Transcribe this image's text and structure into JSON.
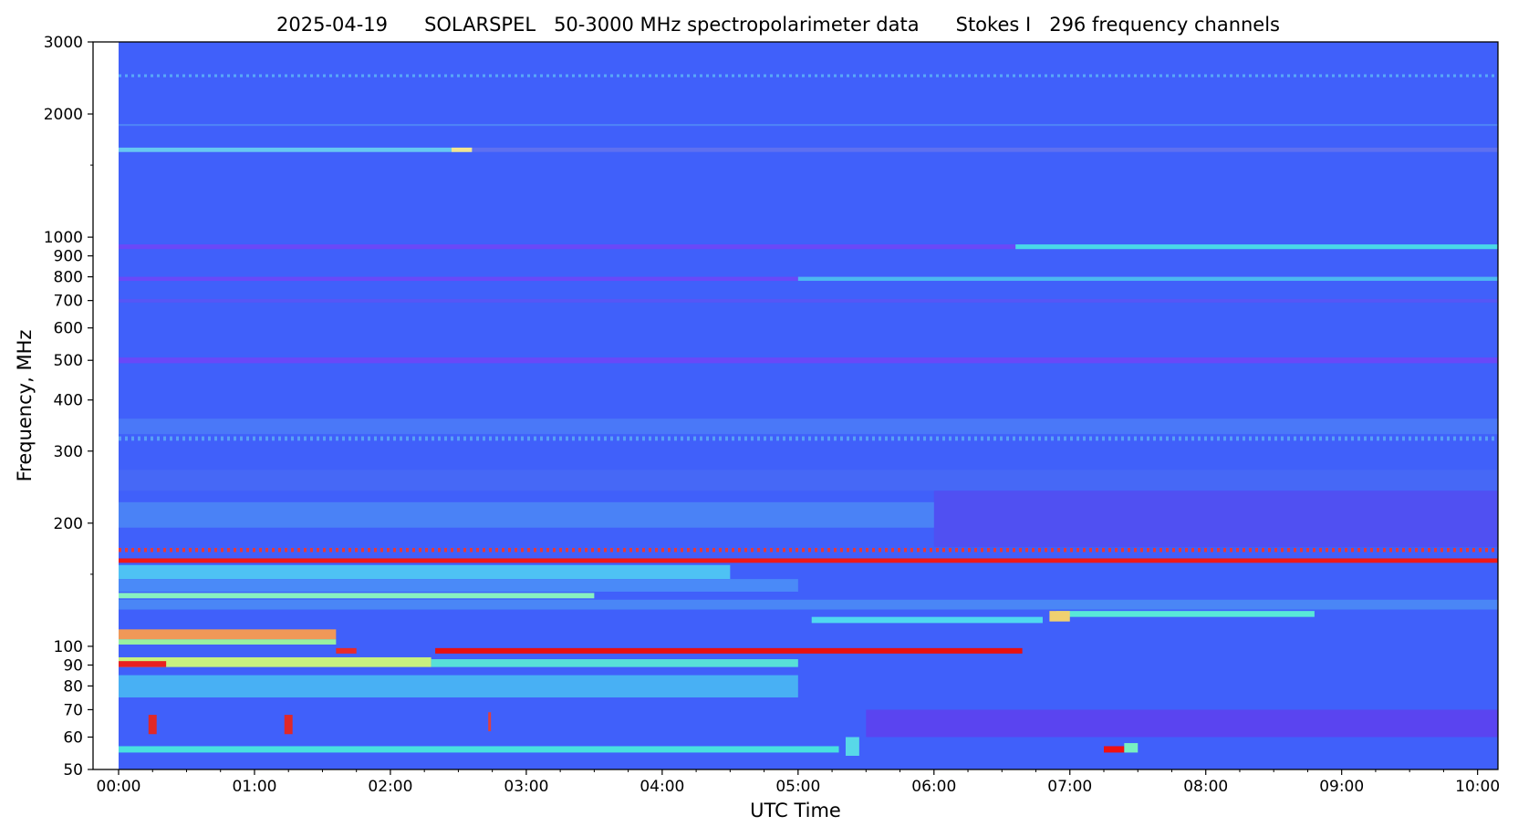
{
  "chart_data": {
    "type": "heatmap",
    "title": "2025-04-19      SOLARSPEL   50-3000 MHz spectropolarimeter data      Stokes I   296 frequency channels",
    "xlabel": "UTC Time",
    "ylabel": "Frequency, MHz",
    "x_unit": "UTC hours",
    "xlim": [
      0.0,
      10.15
    ],
    "ylim": [
      50,
      3000
    ],
    "y_scale": "log",
    "colormap": "rainbow",
    "background_color": "#4060fa",
    "x_ticks": [
      {
        "value": 0,
        "label": "00:00"
      },
      {
        "value": 1,
        "label": "01:00"
      },
      {
        "value": 2,
        "label": "02:00"
      },
      {
        "value": 3,
        "label": "03:00"
      },
      {
        "value": 4,
        "label": "04:00"
      },
      {
        "value": 5,
        "label": "05:00"
      },
      {
        "value": 6,
        "label": "06:00"
      },
      {
        "value": 7,
        "label": "07:00"
      },
      {
        "value": 8,
        "label": "08:00"
      },
      {
        "value": 9,
        "label": "09:00"
      },
      {
        "value": 10,
        "label": "10:00"
      }
    ],
    "y_ticks": [
      {
        "value": 50,
        "label": "50"
      },
      {
        "value": 60,
        "label": "60"
      },
      {
        "value": 70,
        "label": "70"
      },
      {
        "value": 80,
        "label": "80"
      },
      {
        "value": 90,
        "label": "90"
      },
      {
        "value": 100,
        "label": "100"
      },
      {
        "value": 200,
        "label": "200"
      },
      {
        "value": 300,
        "label": "300"
      },
      {
        "value": 400,
        "label": "400"
      },
      {
        "value": 500,
        "label": "500"
      },
      {
        "value": 600,
        "label": "600"
      },
      {
        "value": 700,
        "label": "700"
      },
      {
        "value": 800,
        "label": "800"
      },
      {
        "value": 900,
        "label": "900"
      },
      {
        "value": 1000,
        "label": "1000"
      },
      {
        "value": 2000,
        "label": "2000"
      },
      {
        "value": 3000,
        "label": "3000"
      }
    ],
    "y_minor_ticks": [
      150,
      1500
    ],
    "data_start_hour": 0.0,
    "bands": [
      {
        "t0": 0.0,
        "t1": 10.15,
        "f0": 2460,
        "f1": 2500,
        "color": "#58a8f8",
        "dashed": true
      },
      {
        "t0": 0.0,
        "t1": 10.15,
        "f0": 1870,
        "f1": 1890,
        "color": "#4e84f6"
      },
      {
        "t0": 0.0,
        "t1": 10.15,
        "f0": 1615,
        "f1": 1655,
        "color": "#5e70f0"
      },
      {
        "t0": 0.0,
        "t1": 2.6,
        "f0": 1615,
        "f1": 1655,
        "color": "#66c8f2"
      },
      {
        "t0": 2.45,
        "t1": 2.6,
        "f0": 1615,
        "f1": 1655,
        "color": "#f2e490"
      },
      {
        "t0": 0.0,
        "t1": 10.15,
        "f0": 935,
        "f1": 960,
        "color": "#6a48f8"
      },
      {
        "t0": 6.6,
        "t1": 10.15,
        "f0": 935,
        "f1": 960,
        "color": "#48d8e8"
      },
      {
        "t0": 0.0,
        "t1": 10.15,
        "f0": 782,
        "f1": 800,
        "color": "#6a48f8"
      },
      {
        "t0": 5.0,
        "t1": 10.15,
        "f0": 782,
        "f1": 800,
        "color": "#4cb8f0"
      },
      {
        "t0": 0.0,
        "t1": 10.15,
        "f0": 692,
        "f1": 706,
        "color": "#5656f6"
      },
      {
        "t0": 0.0,
        "t1": 10.15,
        "f0": 492,
        "f1": 508,
        "color": "#6a48f8"
      },
      {
        "t0": 0.0,
        "t1": 10.15,
        "f0": 330,
        "f1": 360,
        "color": "#4a78f8"
      },
      {
        "t0": 0.0,
        "t1": 10.15,
        "f0": 318,
        "f1": 326,
        "color": "#58a0f4",
        "dashed": true
      },
      {
        "t0": 0.0,
        "t1": 10.15,
        "f0": 240,
        "f1": 270,
        "color": "#4668f6"
      },
      {
        "t0": 0.0,
        "t1": 10.15,
        "f0": 195,
        "f1": 225,
        "color": "#4a82f6"
      },
      {
        "t0": 6.0,
        "t1": 10.15,
        "f0": 175,
        "f1": 240,
        "color": "#5050f2"
      },
      {
        "t0": 0.0,
        "t1": 10.15,
        "f0": 170,
        "f1": 174,
        "color": "#e83a3a",
        "dashed": true
      },
      {
        "t0": 0.0,
        "t1": 10.15,
        "f0": 160,
        "f1": 164,
        "color": "#f01818"
      },
      {
        "t0": 0.0,
        "t1": 4.5,
        "f0": 146,
        "f1": 158,
        "color": "#4ec2f4"
      },
      {
        "t0": 0.0,
        "t1": 5.0,
        "f0": 136,
        "f1": 146,
        "color": "#4a8af8"
      },
      {
        "t0": 0.0,
        "t1": 3.5,
        "f0": 131,
        "f1": 135,
        "color": "#88f0c0"
      },
      {
        "t0": 0.0,
        "t1": 10.15,
        "f0": 123,
        "f1": 130,
        "color": "#4a86f6"
      },
      {
        "t0": 5.1,
        "t1": 6.8,
        "f0": 114,
        "f1": 118,
        "color": "#50d8f0"
      },
      {
        "t0": 6.9,
        "t1": 8.8,
        "f0": 118,
        "f1": 122,
        "color": "#58e8d8"
      },
      {
        "t0": 6.85,
        "t1": 7.0,
        "f0": 115,
        "f1": 122,
        "color": "#f0d070"
      },
      {
        "t0": 0.0,
        "t1": 1.6,
        "f0": 104,
        "f1": 110,
        "color": "#f09858"
      },
      {
        "t0": 0.0,
        "t1": 1.6,
        "f0": 101,
        "f1": 104,
        "color": "#98f0a0"
      },
      {
        "t0": 1.6,
        "t1": 1.75,
        "f0": 96,
        "f1": 99,
        "color": "#e82a2a"
      },
      {
        "t0": 2.33,
        "t1": 6.65,
        "f0": 96,
        "f1": 99,
        "color": "#e81010"
      },
      {
        "t0": 0.0,
        "t1": 2.3,
        "f0": 89,
        "f1": 94,
        "color": "#c8f080"
      },
      {
        "t0": 0.0,
        "t1": 0.35,
        "f0": 89,
        "f1": 92,
        "color": "#e82020"
      },
      {
        "t0": 2.3,
        "t1": 5.0,
        "f0": 89,
        "f1": 93,
        "color": "#58e0d8"
      },
      {
        "t0": 0.0,
        "t1": 5.0,
        "f0": 75,
        "f1": 85,
        "color": "#48b0f4"
      },
      {
        "t0": 5.5,
        "t1": 10.15,
        "f0": 60,
        "f1": 70,
        "color": "#5a44f0"
      },
      {
        "t0": 0.0,
        "t1": 5.3,
        "f0": 55,
        "f1": 57,
        "color": "#48e0e0"
      },
      {
        "t0": 7.25,
        "t1": 7.4,
        "f0": 55,
        "f1": 57,
        "color": "#f01010"
      },
      {
        "t0": 7.4,
        "t1": 7.5,
        "f0": 55,
        "f1": 58,
        "color": "#78f0c0"
      },
      {
        "t0": 0.22,
        "t1": 0.28,
        "f0": 61,
        "f1": 68,
        "color": "#e02828"
      },
      {
        "t0": 1.22,
        "t1": 1.28,
        "f0": 61,
        "f1": 68,
        "color": "#e02828"
      },
      {
        "t0": 2.72,
        "t1": 2.74,
        "f0": 62,
        "f1": 69,
        "color": "#e04040"
      },
      {
        "t0": 5.35,
        "t1": 5.45,
        "f0": 54,
        "f1": 60,
        "color": "#58d8e8"
      }
    ]
  }
}
